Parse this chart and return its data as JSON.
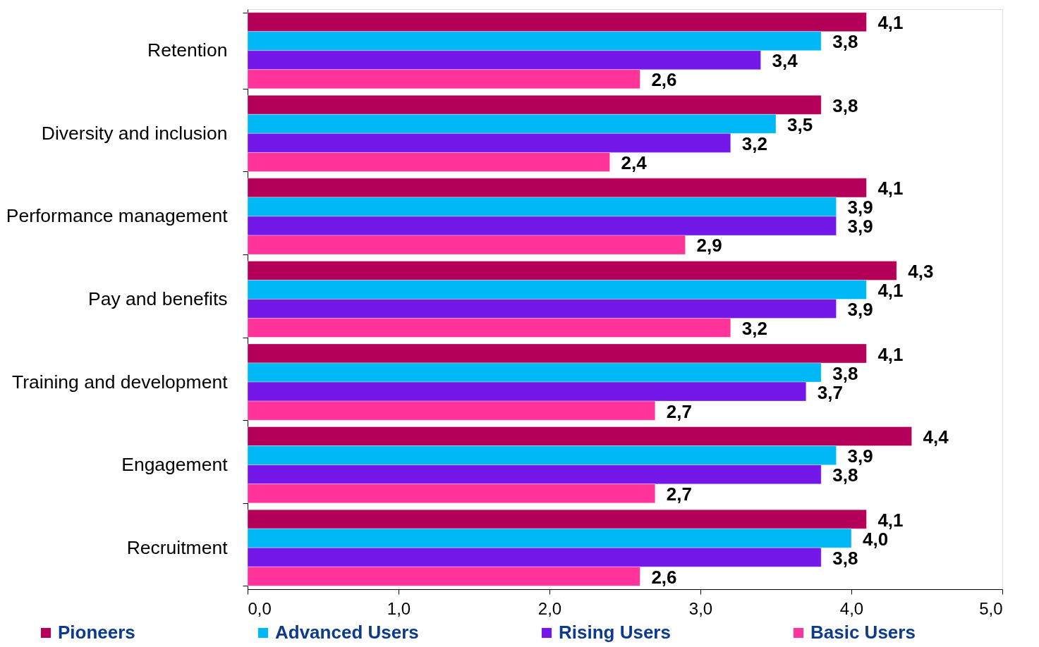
{
  "chart_data": {
    "type": "bar",
    "orientation": "horizontal",
    "legend": "bottom",
    "categories": [
      "Retention",
      "Diversity and inclusion",
      "Performance management",
      "Pay and benefits",
      "Training and development",
      "Engagement",
      "Recruitment"
    ],
    "xlim": [
      0,
      5
    ],
    "xticks": [
      {
        "value": 0,
        "label": "0,0"
      },
      {
        "value": 1,
        "label": "1,0"
      },
      {
        "value": 2,
        "label": "2,0"
      },
      {
        "value": 3,
        "label": "3,0"
      },
      {
        "value": 4,
        "label": "4,0"
      },
      {
        "value": 5,
        "label": "5,0"
      }
    ],
    "series": [
      {
        "name": "Pioneers",
        "color": "#b5005a",
        "values": [
          4.1,
          3.8,
          4.1,
          4.3,
          4.1,
          4.4,
          4.1
        ],
        "value_labels": [
          "4,1",
          "3,8",
          "4,1",
          "4,3",
          "4,1",
          "4,4",
          "4,1"
        ]
      },
      {
        "name": "Advanced Users",
        "color": "#00b8f5",
        "values": [
          3.8,
          3.5,
          3.9,
          4.1,
          3.8,
          3.9,
          4.0
        ],
        "value_labels": [
          "3,8",
          "3,5",
          "3,9",
          "4,1",
          "3,8",
          "3,9",
          "4,0"
        ]
      },
      {
        "name": "Rising Users",
        "color": "#7318e8",
        "values": [
          3.4,
          3.2,
          3.9,
          3.9,
          3.7,
          3.8,
          3.8
        ],
        "value_labels": [
          "3,4",
          "3,2",
          "3,9",
          "3,9",
          "3,7",
          "3,8",
          "3,8"
        ]
      },
      {
        "name": "Basic Users",
        "color": "#ff3399",
        "values": [
          2.6,
          2.4,
          2.9,
          3.2,
          2.7,
          2.7,
          2.6
        ],
        "value_labels": [
          "2,6",
          "2,4",
          "2,9",
          "3,2",
          "2,7",
          "2,7",
          "2,6"
        ]
      }
    ]
  }
}
